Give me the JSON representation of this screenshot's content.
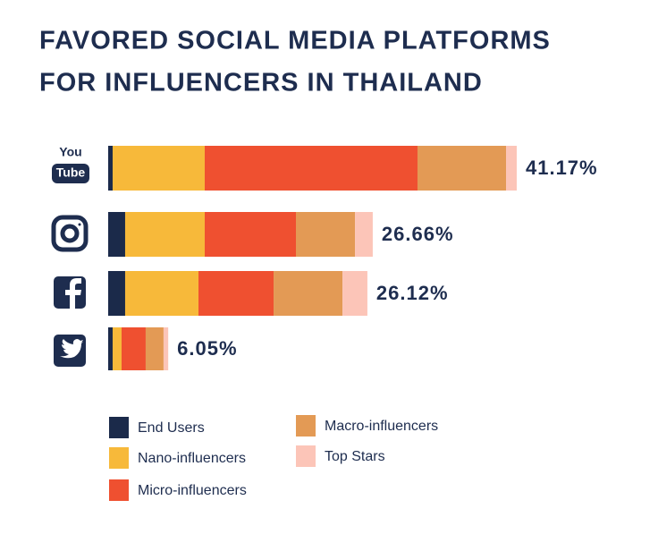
{
  "logo_text": [
    "You",
    "Tube"
  ],
  "chart_data": {
    "type": "stacked-bar-horizontal",
    "title": [
      "FAVORED SOCIAL MEDIA PLATFORMS",
      "FOR INFLUENCERS IN THAILAND"
    ],
    "categories": [
      null,
      null,
      null,
      null
    ],
    "series": [
      {
        "name": "End Users",
        "color": "#1b2a4a",
        "values": [
          0.45,
          1.71,
          1.71,
          0.45
        ]
      },
      {
        "name": "Nano-influencers",
        "color": "#f7b93a",
        "values": [
          9.28,
          8.02,
          7.39,
          0.9
        ]
      },
      {
        "name": "Micro-influencers",
        "color": "#ef5030",
        "values": [
          21.44,
          9.19,
          7.57,
          2.43
        ]
      },
      {
        "name": "Macro-influencers",
        "color": "#e39a55",
        "values": [
          8.92,
          5.95,
          6.94,
          1.8
        ]
      },
      {
        "name": "Top Stars",
        "color": "#fcc5b8",
        "values": [
          1.08,
          1.79,
          2.51,
          0.47
        ]
      }
    ],
    "totals": [
      41.17,
      26.66,
      26.12,
      6.05
    ],
    "total_labels": [
      "41.17%",
      "26.66%",
      "26.12%",
      "6.05%"
    ]
  }
}
